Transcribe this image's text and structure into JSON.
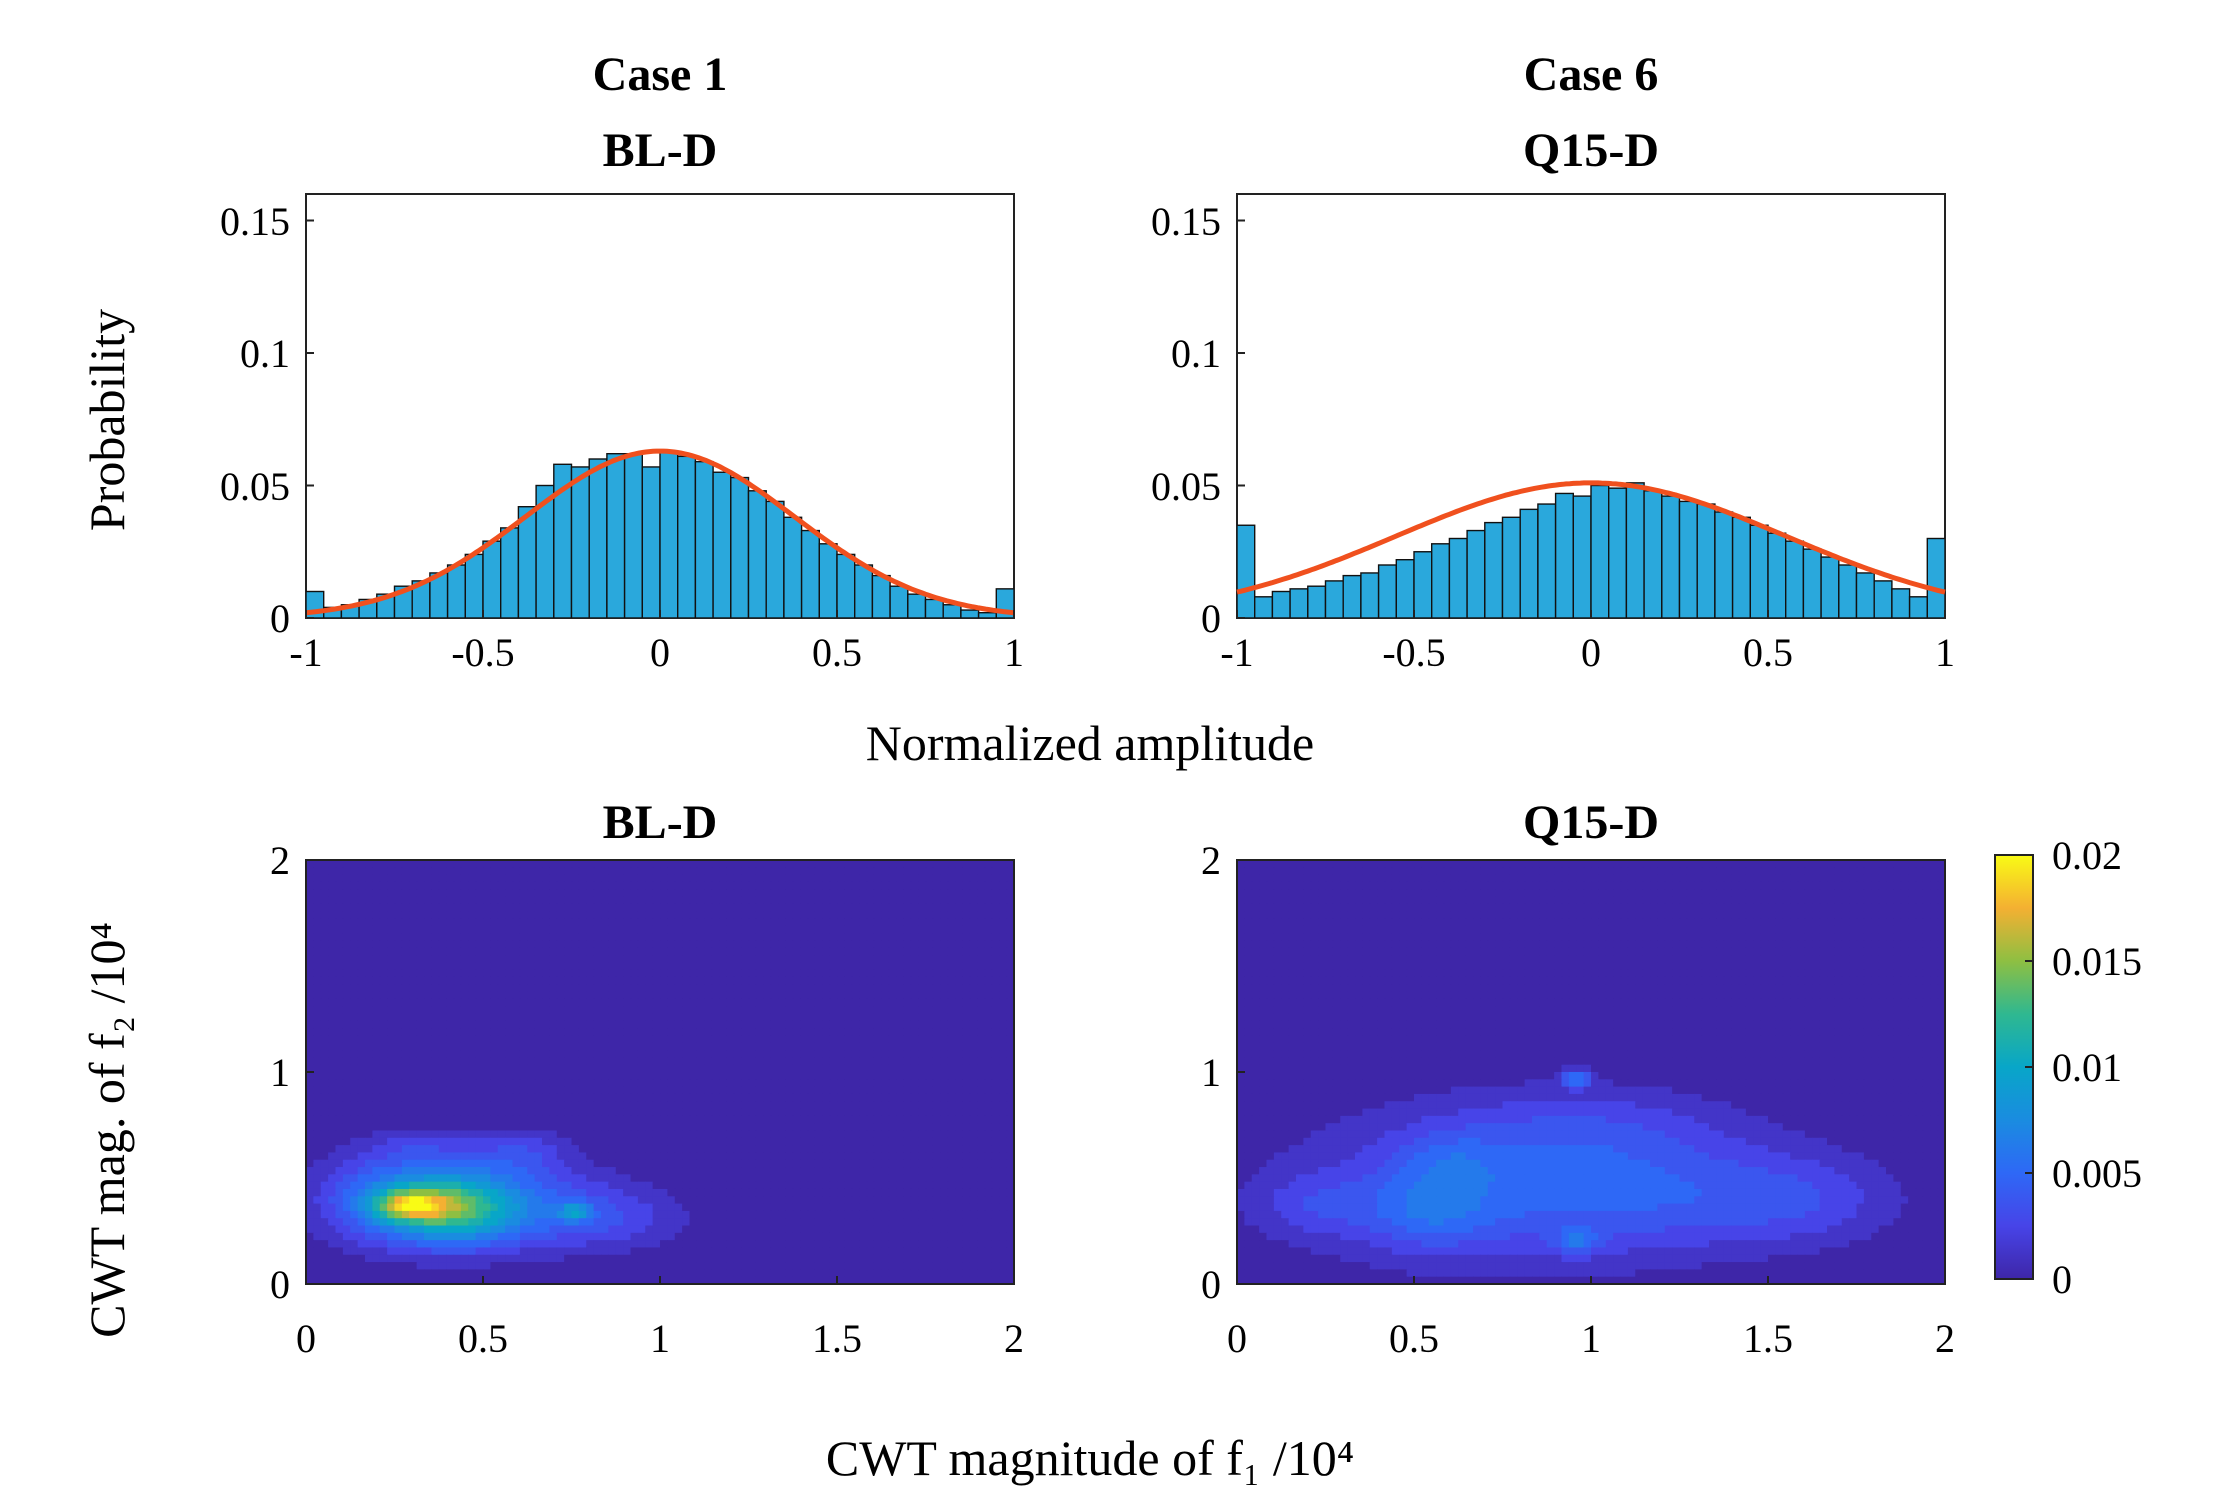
{
  "figure": {
    "shared_xlabel_top": "Normalized amplitude",
    "shared_ylabel_bottom": "CWT mag. of f₂ /10⁴",
    "shared_xlabel_bottom": "CWT magnitude of f₁ /10⁴",
    "colors": {
      "bar": "#2aa8dc",
      "fit": "#f0501e",
      "bg": "#3e26a8"
    }
  },
  "chart_data": [
    {
      "type": "bar",
      "title_line1": "Case 1",
      "title_line2": "BL-D",
      "ylabel": "Probability",
      "xlim": [
        -1,
        1
      ],
      "ylim": [
        0,
        0.16
      ],
      "xticks": [
        "-1",
        "-0.5",
        "0",
        "0.5",
        "1"
      ],
      "yticks": [
        "0",
        "0.05",
        "0.1",
        "0.15"
      ],
      "bin_count": 40,
      "values": [
        0.01,
        0.004,
        0.005,
        0.007,
        0.009,
        0.012,
        0.014,
        0.017,
        0.02,
        0.024,
        0.029,
        0.034,
        0.042,
        0.05,
        0.058,
        0.057,
        0.06,
        0.062,
        0.062,
        0.057,
        0.063,
        0.061,
        0.059,
        0.055,
        0.053,
        0.048,
        0.044,
        0.038,
        0.033,
        0.028,
        0.024,
        0.02,
        0.016,
        0.012,
        0.009,
        0.007,
        0.005,
        0.003,
        0.002,
        0.011
      ],
      "fit_mu": 0,
      "fit_sigma": 0.38,
      "fit_peak": 0.063
    },
    {
      "type": "bar",
      "title_line1": "Case 6",
      "title_line2": "Q15-D",
      "ylabel": "",
      "xlim": [
        -1,
        1
      ],
      "ylim": [
        0,
        0.16
      ],
      "xticks": [
        "-1",
        "-0.5",
        "0",
        "0.5",
        "1"
      ],
      "yticks": [
        "0",
        "0.05",
        "0.1",
        "0.15"
      ],
      "bin_count": 40,
      "values": [
        0.035,
        0.008,
        0.01,
        0.011,
        0.012,
        0.014,
        0.016,
        0.017,
        0.02,
        0.022,
        0.025,
        0.028,
        0.03,
        0.033,
        0.036,
        0.038,
        0.041,
        0.043,
        0.047,
        0.046,
        0.05,
        0.049,
        0.051,
        0.048,
        0.046,
        0.044,
        0.043,
        0.04,
        0.038,
        0.035,
        0.032,
        0.029,
        0.026,
        0.023,
        0.02,
        0.017,
        0.014,
        0.011,
        0.008,
        0.03
      ],
      "fit_mu": 0,
      "fit_sigma": 0.55,
      "fit_peak": 0.051
    },
    {
      "type": "heatmap",
      "title": "BL-D",
      "xlim": [
        0,
        2
      ],
      "ylim": [
        0,
        2
      ],
      "xticks": [
        "0",
        "0.5",
        "1",
        "1.5",
        "2"
      ],
      "yticks": [
        "0",
        "1",
        "2"
      ],
      "blobs": [
        {
          "x": 0.29,
          "y": 0.37,
          "sx": 0.07,
          "sy": 0.05,
          "a": 0.009
        },
        {
          "x": 0.42,
          "y": 0.36,
          "sx": 0.12,
          "sy": 0.12,
          "a": 0.01
        },
        {
          "x": 0.22,
          "y": 0.4,
          "sx": 0.14,
          "sy": 0.15,
          "a": 0.006
        },
        {
          "x": 0.62,
          "y": 0.36,
          "sx": 0.2,
          "sy": 0.14,
          "a": 0.005
        },
        {
          "x": 0.76,
          "y": 0.34,
          "sx": 0.03,
          "sy": 0.03,
          "a": 0.006
        },
        {
          "x": 0.6,
          "y": 0.62,
          "sx": 0.1,
          "sy": 0.08,
          "a": 0.003
        },
        {
          "x": 0.32,
          "y": 0.65,
          "sx": 0.1,
          "sy": 0.06,
          "a": 0.002
        },
        {
          "x": 0.9,
          "y": 0.3,
          "sx": 0.15,
          "sy": 0.1,
          "a": 0.002
        }
      ]
    },
    {
      "type": "heatmap",
      "title": "Q15-D",
      "xlim": [
        0,
        2
      ],
      "ylim": [
        0,
        2
      ],
      "xticks": [
        "0",
        "0.5",
        "1",
        "1.5",
        "2"
      ],
      "yticks": [
        "0",
        "1",
        "2"
      ],
      "colorbar": {
        "ticks": [
          "0",
          "0.005",
          "0.01",
          "0.015",
          "0.02"
        ],
        "min": 0,
        "max": 0.02
      },
      "blobs": [
        {
          "x": 0.7,
          "y": 0.45,
          "sx": 0.4,
          "sy": 0.26,
          "a": 0.004
        },
        {
          "x": 0.54,
          "y": 0.34,
          "sx": 0.12,
          "sy": 0.12,
          "a": 0.003
        },
        {
          "x": 0.6,
          "y": 0.57,
          "sx": 0.1,
          "sy": 0.1,
          "a": 0.002
        },
        {
          "x": 1.2,
          "y": 0.42,
          "sx": 0.32,
          "sy": 0.2,
          "a": 0.003
        },
        {
          "x": 0.22,
          "y": 0.37,
          "sx": 0.12,
          "sy": 0.1,
          "a": 0.002
        },
        {
          "x": 0.96,
          "y": 0.97,
          "sx": 0.03,
          "sy": 0.03,
          "a": 0.006
        },
        {
          "x": 0.96,
          "y": 0.2,
          "sx": 0.04,
          "sy": 0.04,
          "a": 0.004
        },
        {
          "x": 1.6,
          "y": 0.4,
          "sx": 0.2,
          "sy": 0.15,
          "a": 0.0025
        },
        {
          "x": 1.0,
          "y": 0.75,
          "sx": 0.3,
          "sy": 0.14,
          "a": 0.002
        }
      ]
    }
  ]
}
